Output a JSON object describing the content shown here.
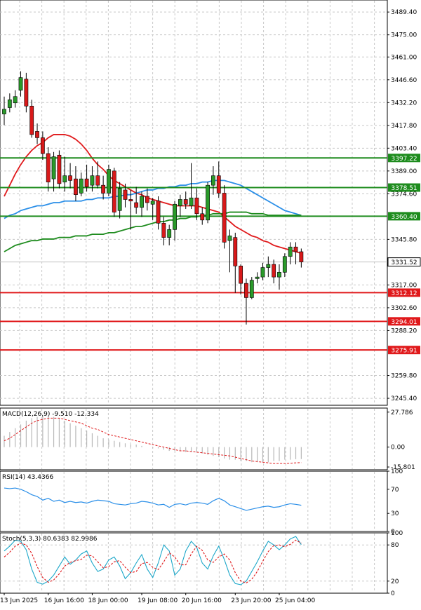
{
  "chart_data": [
    {
      "type": "candlestick",
      "title": "",
      "price_axis_ticks": [
        3489.4,
        3475.0,
        3461.0,
        3446.6,
        3432.2,
        3417.8,
        3403.4,
        3389.0,
        3374.6,
        3345.8,
        3317.0,
        3302.6,
        3288.2,
        3259.8,
        3245.4
      ],
      "price_axis_labels": [
        "3489.40",
        "3475.00",
        "3461.00",
        "3446.60",
        "3432.20",
        "3417.80",
        "3403.40",
        "3389.00",
        "3374.60",
        "3345.80",
        "3317.00",
        "3302.60",
        "3288.20",
        "3259.80",
        "3245.40"
      ],
      "ylim": [
        3241,
        3497
      ],
      "current_price": 3331.52,
      "current_price_label": "3331.52",
      "resistance_levels": [
        {
          "value": 3397.22,
          "label": "3397.22",
          "color": "#1e8c1e"
        },
        {
          "value": 3378.51,
          "label": "3378.51",
          "color": "#1e8c1e"
        },
        {
          "value": 3360.4,
          "label": "3360.40",
          "color": "#1e8c1e"
        }
      ],
      "support_levels": [
        {
          "value": 3312.12,
          "label": "3312.12",
          "color": "#e0191b"
        },
        {
          "value": 3294.01,
          "label": "3294.01",
          "color": "#e0191b"
        },
        {
          "value": 3275.91,
          "label": "3275.91",
          "color": "#e0191b"
        }
      ],
      "candles": [
        {
          "o": 3425,
          "h": 3436,
          "l": 3418,
          "c": 3428
        },
        {
          "o": 3429,
          "h": 3438,
          "l": 3426,
          "c": 3434
        },
        {
          "o": 3432,
          "h": 3440,
          "l": 3429,
          "c": 3436
        },
        {
          "o": 3440,
          "h": 3452,
          "l": 3436,
          "c": 3448
        },
        {
          "o": 3447,
          "h": 3451,
          "l": 3426,
          "c": 3430
        },
        {
          "o": 3430,
          "h": 3434,
          "l": 3410,
          "c": 3412
        },
        {
          "o": 3414,
          "h": 3419,
          "l": 3406,
          "c": 3410
        },
        {
          "o": 3410,
          "h": 3414,
          "l": 3396,
          "c": 3400
        },
        {
          "o": 3400,
          "h": 3404,
          "l": 3376,
          "c": 3382
        },
        {
          "o": 3384,
          "h": 3401,
          "l": 3376,
          "c": 3398
        },
        {
          "o": 3399,
          "h": 3402,
          "l": 3378,
          "c": 3381
        },
        {
          "o": 3382,
          "h": 3398,
          "l": 3376,
          "c": 3386
        },
        {
          "o": 3386,
          "h": 3394,
          "l": 3378,
          "c": 3383
        },
        {
          "o": 3384,
          "h": 3392,
          "l": 3370,
          "c": 3374
        },
        {
          "o": 3375,
          "h": 3388,
          "l": 3373,
          "c": 3384
        },
        {
          "o": 3384,
          "h": 3393,
          "l": 3376,
          "c": 3379
        },
        {
          "o": 3380,
          "h": 3392,
          "l": 3376,
          "c": 3386
        },
        {
          "o": 3386,
          "h": 3395,
          "l": 3378,
          "c": 3380
        },
        {
          "o": 3380,
          "h": 3386,
          "l": 3371,
          "c": 3375
        },
        {
          "o": 3375,
          "h": 3393,
          "l": 3373,
          "c": 3390
        },
        {
          "o": 3389,
          "h": 3391,
          "l": 3360,
          "c": 3363
        },
        {
          "o": 3364,
          "h": 3382,
          "l": 3359,
          "c": 3378
        },
        {
          "o": 3377,
          "h": 3381,
          "l": 3366,
          "c": 3371
        },
        {
          "o": 3371,
          "h": 3377,
          "l": 3352,
          "c": 3370
        },
        {
          "o": 3369,
          "h": 3379,
          "l": 3362,
          "c": 3366
        },
        {
          "o": 3366,
          "h": 3376,
          "l": 3360,
          "c": 3373
        },
        {
          "o": 3373,
          "h": 3378,
          "l": 3364,
          "c": 3369
        },
        {
          "o": 3368,
          "h": 3372,
          "l": 3358,
          "c": 3370
        },
        {
          "o": 3370,
          "h": 3373,
          "l": 3352,
          "c": 3356
        },
        {
          "o": 3356,
          "h": 3360,
          "l": 3342,
          "c": 3347
        },
        {
          "o": 3347,
          "h": 3355,
          "l": 3342,
          "c": 3352
        },
        {
          "o": 3352,
          "h": 3370,
          "l": 3345,
          "c": 3368
        },
        {
          "o": 3367,
          "h": 3374,
          "l": 3360,
          "c": 3371
        },
        {
          "o": 3371,
          "h": 3376,
          "l": 3365,
          "c": 3368
        },
        {
          "o": 3367,
          "h": 3394,
          "l": 3365,
          "c": 3372
        },
        {
          "o": 3372,
          "h": 3378,
          "l": 3358,
          "c": 3362
        },
        {
          "o": 3362,
          "h": 3366,
          "l": 3355,
          "c": 3358
        },
        {
          "o": 3358,
          "h": 3382,
          "l": 3356,
          "c": 3380
        },
        {
          "o": 3380,
          "h": 3392,
          "l": 3374,
          "c": 3386
        },
        {
          "o": 3386,
          "h": 3395,
          "l": 3372,
          "c": 3375
        },
        {
          "o": 3375,
          "h": 3380,
          "l": 3340,
          "c": 3344
        },
        {
          "o": 3345,
          "h": 3352,
          "l": 3325,
          "c": 3348
        },
        {
          "o": 3347,
          "h": 3350,
          "l": 3312,
          "c": 3329
        },
        {
          "o": 3329,
          "h": 3330,
          "l": 3311,
          "c": 3318
        },
        {
          "o": 3318,
          "h": 3321,
          "l": 3292,
          "c": 3309
        },
        {
          "o": 3309,
          "h": 3322,
          "l": 3308,
          "c": 3320
        },
        {
          "o": 3321,
          "h": 3325,
          "l": 3318,
          "c": 3322
        },
        {
          "o": 3322,
          "h": 3331,
          "l": 3320,
          "c": 3328
        },
        {
          "o": 3328,
          "h": 3335,
          "l": 3322,
          "c": 3330
        },
        {
          "o": 3330,
          "h": 3333,
          "l": 3318,
          "c": 3322
        },
        {
          "o": 3322,
          "h": 3330,
          "l": 3314,
          "c": 3325
        },
        {
          "o": 3325,
          "h": 3337,
          "l": 3322,
          "c": 3335
        },
        {
          "o": 3335,
          "h": 3344,
          "l": 3330,
          "c": 3341
        },
        {
          "o": 3341,
          "h": 3344,
          "l": 3330,
          "c": 3338
        },
        {
          "o": 3338,
          "h": 3340,
          "l": 3328,
          "c": 3331.52
        }
      ],
      "moving_averages": [
        {
          "color": "#e0191b",
          "values": [
            3373,
            3380,
            3387,
            3393,
            3398,
            3402,
            3405,
            3407,
            3410,
            3412,
            3412,
            3412,
            3411,
            3409,
            3406,
            3402,
            3397,
            3393,
            3390,
            3386,
            3383,
            3381,
            3379,
            3377,
            3375,
            3374,
            3372,
            3371,
            3370,
            3369,
            3368,
            3367,
            3367,
            3367,
            3367,
            3367,
            3366,
            3365,
            3364,
            3363,
            3360,
            3357,
            3354,
            3352,
            3350,
            3348,
            3347,
            3345,
            3344,
            3342,
            3341,
            3340,
            3339,
            3338,
            3337
          ]
        },
        {
          "color": "#2b8fe8",
          "values": [
            3359,
            3361,
            3362,
            3364,
            3365,
            3366,
            3367,
            3367,
            3368,
            3369,
            3369,
            3370,
            3370,
            3370,
            3370,
            3371,
            3371,
            3372,
            3372,
            3372,
            3373,
            3373,
            3374,
            3374,
            3375,
            3376,
            3377,
            3377,
            3378,
            3378,
            3379,
            3379,
            3380,
            3380,
            3381,
            3381,
            3382,
            3382,
            3383,
            3383,
            3383,
            3382,
            3381,
            3380,
            3378,
            3376,
            3374,
            3372,
            3370,
            3368,
            3366,
            3364,
            3363,
            3362,
            3361
          ]
        },
        {
          "color": "#1e8c1e",
          "values": [
            3338,
            3340,
            3342,
            3343,
            3344,
            3345,
            3345,
            3346,
            3346,
            3346,
            3347,
            3347,
            3347,
            3348,
            3348,
            3348,
            3349,
            3349,
            3349,
            3350,
            3350,
            3351,
            3352,
            3353,
            3354,
            3354,
            3355,
            3356,
            3357,
            3357,
            3358,
            3358,
            3359,
            3359,
            3360,
            3360,
            3361,
            3361,
            3362,
            3362,
            3362,
            3363,
            3363,
            3363,
            3363,
            3362,
            3362,
            3362,
            3361,
            3361,
            3361,
            3361,
            3361,
            3361,
            3361
          ]
        }
      ]
    },
    {
      "type": "histogram",
      "label": "MACD(12,26,9) -9.510 -12.334",
      "ylim": [
        -18,
        31
      ],
      "ticks": [
        27.786,
        0.0,
        -15.801
      ],
      "tick_labels": [
        "27.786",
        "0.00",
        "-15.801"
      ],
      "histogram": [
        9,
        12,
        15,
        18,
        21,
        23,
        24,
        25,
        25,
        24,
        23,
        21,
        19,
        17,
        15,
        13,
        11,
        9,
        7,
        6,
        5,
        4,
        3,
        2,
        2,
        1,
        0,
        -1,
        -1,
        -2,
        -3,
        -3,
        -3,
        -4,
        -4,
        -4,
        -5,
        -6,
        -7,
        -8,
        -9,
        -10,
        -10,
        -11,
        -11,
        -12,
        -12,
        -12,
        -12,
        -11,
        -11,
        -10,
        -10,
        -9.6,
        -9.51
      ],
      "signal": [
        5,
        7,
        10,
        13,
        16,
        19,
        21,
        22,
        23,
        23,
        23,
        22,
        21,
        20,
        19,
        17,
        15,
        14,
        12,
        10,
        9,
        8,
        7,
        6,
        5,
        4,
        3,
        2,
        1,
        0,
        -1,
        -2,
        -3,
        -3,
        -3.5,
        -4,
        -4.5,
        -5,
        -5.5,
        -6,
        -6.5,
        -7,
        -8,
        -9,
        -10,
        -11,
        -11.5,
        -12,
        -12.5,
        -13,
        -13,
        -13,
        -12.8,
        -12.5,
        -12.334
      ]
    },
    {
      "type": "line",
      "label": "RSI(14) 43.4366",
      "ylim": [
        0,
        100
      ],
      "ticks": [
        100,
        70,
        30,
        0
      ],
      "tick_labels": [
        "100",
        "70",
        "30",
        "0"
      ],
      "values": [
        72,
        71,
        72,
        70,
        66,
        61,
        58,
        52,
        55,
        50,
        52,
        48,
        50,
        48,
        49,
        47,
        50,
        52,
        51,
        50,
        46,
        45,
        44,
        46,
        47,
        50,
        49,
        47,
        44,
        45,
        40,
        45,
        46,
        44,
        47,
        48,
        47,
        45,
        51,
        55,
        51,
        44,
        41,
        38,
        35,
        37,
        39,
        41,
        42,
        40,
        41,
        44,
        46,
        45,
        43.4366
      ]
    },
    {
      "type": "line",
      "label": "Stoch(5,3,3) 80.6383 82.9986",
      "ylim": [
        0,
        100
      ],
      "ticks": [
        100,
        80,
        20,
        0
      ],
      "tick_labels": [
        "100",
        "80",
        "20",
        "0"
      ],
      "series": [
        {
          "color": "#1ca7c9",
          "values": [
            70,
            78,
            88,
            86,
            72,
            40,
            18,
            15,
            20,
            30,
            45,
            60,
            48,
            55,
            65,
            70,
            50,
            36,
            40,
            55,
            60,
            45,
            24,
            34,
            50,
            64,
            40,
            26,
            50,
            80,
            70,
            30,
            40,
            70,
            86,
            76,
            50,
            40,
            62,
            78,
            56,
            30,
            16,
            14,
            20,
            36,
            52,
            70,
            86,
            80,
            72,
            80,
            90,
            94,
            80.6383
          ]
        },
        {
          "color": "#e0191b",
          "values": [
            60,
            68,
            78,
            83,
            80,
            66,
            44,
            26,
            18,
            22,
            32,
            45,
            51,
            54,
            56,
            63,
            62,
            52,
            42,
            44,
            52,
            54,
            43,
            34,
            36,
            49,
            51,
            43,
            39,
            52,
            67,
            60,
            47,
            47,
            65,
            78,
            71,
            55,
            51,
            60,
            65,
            55,
            34,
            20,
            17,
            23,
            36,
            53,
            69,
            79,
            80,
            77,
            81,
            88,
            82.9986
          ]
        }
      ]
    }
  ],
  "x_axis_labels": [
    {
      "index": 0,
      "label": "13 Jun 2025"
    },
    {
      "index": 8,
      "label": "16 Jun 16:00"
    },
    {
      "index": 16,
      "label": "18 Jun 00:00"
    },
    {
      "index": 25,
      "label": "19 Jun 08:00"
    },
    {
      "index": 33,
      "label": "20 Jun 16:00"
    },
    {
      "index": 42,
      "label": "23 Jun 20:00"
    },
    {
      "index": 50,
      "label": "25 Jun 04:00"
    }
  ]
}
